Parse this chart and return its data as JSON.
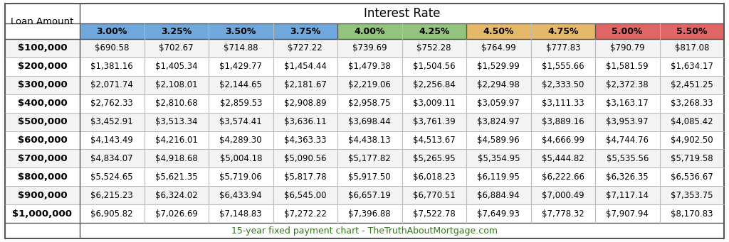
{
  "title": "Interest Rate",
  "footer": "15-year fixed payment chart - TheTruthAboutMortgage.com",
  "col_header": [
    "3.00%",
    "3.25%",
    "3.50%",
    "3.75%",
    "4.00%",
    "4.25%",
    "4.50%",
    "4.75%",
    "5.00%",
    "5.50%"
  ],
  "col_colors": [
    "#6fa8dc",
    "#6fa8dc",
    "#6fa8dc",
    "#6fa8dc",
    "#93c47d",
    "#93c47d",
    "#e6b96a",
    "#e6b96a",
    "#e06666",
    "#e06666"
  ],
  "row_header": [
    "$100,000",
    "$200,000",
    "$300,000",
    "$400,000",
    "$500,000",
    "$600,000",
    "$700,000",
    "$800,000",
    "$900,000",
    "$1,000,000"
  ],
  "data": [
    [
      "$690.58",
      "$702.67",
      "$714.88",
      "$727.22",
      "$739.69",
      "$752.28",
      "$764.99",
      "$777.83",
      "$790.79",
      "$817.08"
    ],
    [
      "$1,381.16",
      "$1,405.34",
      "$1,429.77",
      "$1,454.44",
      "$1,479.38",
      "$1,504.56",
      "$1,529.99",
      "$1,555.66",
      "$1,581.59",
      "$1,634.17"
    ],
    [
      "$2,071.74",
      "$2,108.01",
      "$2,144.65",
      "$2,181.67",
      "$2,219.06",
      "$2,256.84",
      "$2,294.98",
      "$2,333.50",
      "$2,372.38",
      "$2,451.25"
    ],
    [
      "$2,762.33",
      "$2,810.68",
      "$2,859.53",
      "$2,908.89",
      "$2,958.75",
      "$3,009.11",
      "$3,059.97",
      "$3,111.33",
      "$3,163.17",
      "$3,268.33"
    ],
    [
      "$3,452.91",
      "$3,513.34",
      "$3,574.41",
      "$3,636.11",
      "$3,698.44",
      "$3,761.39",
      "$3,824.97",
      "$3,889.16",
      "$3,953.97",
      "$4,085.42"
    ],
    [
      "$4,143.49",
      "$4,216.01",
      "$4,289.30",
      "$4,363.33",
      "$4,438.13",
      "$4,513.67",
      "$4,589.96",
      "$4,666.99",
      "$4,744.76",
      "$4,902.50"
    ],
    [
      "$4,834.07",
      "$4,918.68",
      "$5,004.18",
      "$5,090.56",
      "$5,177.82",
      "$5,265.95",
      "$5,354.95",
      "$5,444.82",
      "$5,535.56",
      "$5,719.58"
    ],
    [
      "$5,524.65",
      "$5,621.35",
      "$5,719.06",
      "$5,817.78",
      "$5,917.50",
      "$6,018.23",
      "$6,119.95",
      "$6,222.66",
      "$6,326.35",
      "$6,536.67"
    ],
    [
      "$6,215.23",
      "$6,324.02",
      "$6,433.94",
      "$6,545.00",
      "$6,657.19",
      "$6,770.51",
      "$6,884.94",
      "$7,000.49",
      "$7,117.14",
      "$7,353.75"
    ],
    [
      "$6,905.82",
      "$7,026.69",
      "$7,148.83",
      "$7,272.22",
      "$7,396.88",
      "$7,522.78",
      "$7,649.93",
      "$7,778.32",
      "$7,907.94",
      "$8,170.83"
    ]
  ],
  "bg_color": "#ffffff",
  "outer_border_color": "#555555",
  "inner_line_color": "#bbbbbb",
  "footer_color": "#38761d",
  "row_header_color": "#000000",
  "data_cell_color": "#000000",
  "loan_amount_label": "Loan Amount",
  "row_alt_colors": [
    "#f3f3f3",
    "#ffffff"
  ],
  "title_fontsize": 12,
  "header_fontsize": 9,
  "data_fontsize": 8.5,
  "row_label_fontsize": 9.5,
  "footer_fontsize": 9
}
